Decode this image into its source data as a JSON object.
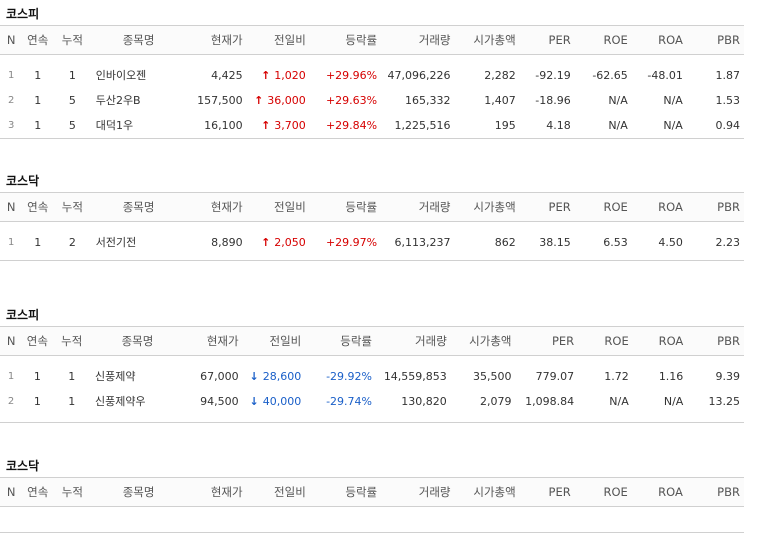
{
  "columns": [
    "N",
    "연속",
    "누적",
    "종목명",
    "현재가",
    "전일비",
    "등락률",
    "거래량",
    "시가총액",
    "PER",
    "ROE",
    "ROA",
    "PBR"
  ],
  "sections": [
    {
      "title": "코스피",
      "rows": [
        {
          "n": "1",
          "streak": "1",
          "cum": "1",
          "name": "인바이오젠",
          "price": "4,425",
          "dir": "up",
          "change": "1,020",
          "rate": "+29.96%",
          "volume": "47,096,226",
          "mcap": "2,282",
          "per": "-92.19",
          "roe": "-62.65",
          "roa": "-48.01",
          "pbr": "1.87"
        },
        {
          "n": "2",
          "streak": "1",
          "cum": "5",
          "name": "두산2우B",
          "price": "157,500",
          "dir": "up",
          "change": "36,000",
          "rate": "+29.63%",
          "volume": "165,332",
          "mcap": "1,407",
          "per": "-18.96",
          "roe": "N/A",
          "roa": "N/A",
          "pbr": "1.53"
        },
        {
          "n": "3",
          "streak": "1",
          "cum": "5",
          "name": "대덕1우",
          "price": "16,100",
          "dir": "up",
          "change": "3,700",
          "rate": "+29.84%",
          "volume": "1,225,516",
          "mcap": "195",
          "per": "4.18",
          "roe": "N/A",
          "roa": "N/A",
          "pbr": "0.94"
        }
      ]
    },
    {
      "title": "코스닥",
      "rows": [
        {
          "n": "1",
          "streak": "1",
          "cum": "2",
          "name": "서전기전",
          "price": "8,890",
          "dir": "up",
          "change": "2,050",
          "rate": "+29.97%",
          "volume": "6,113,237",
          "mcap": "862",
          "per": "38.15",
          "roe": "6.53",
          "roa": "4.50",
          "pbr": "2.23"
        }
      ]
    },
    {
      "title": "코스피",
      "rows": [
        {
          "n": "1",
          "streak": "1",
          "cum": "1",
          "name": "신풍제약",
          "price": "67,000",
          "dir": "down",
          "change": "28,600",
          "rate": "-29.92%",
          "volume": "14,559,853",
          "mcap": "35,500",
          "per": "779.07",
          "roe": "1.72",
          "roa": "1.16",
          "pbr": "9.39"
        },
        {
          "n": "2",
          "streak": "1",
          "cum": "1",
          "name": "신풍제약우",
          "price": "94,500",
          "dir": "down",
          "change": "40,000",
          "rate": "-29.74%",
          "volume": "130,820",
          "mcap": "2,079",
          "per": "1,098.84",
          "roe": "N/A",
          "roa": "N/A",
          "pbr": "13.25"
        }
      ]
    },
    {
      "title": "코스닥",
      "rows": []
    }
  ],
  "icons": {
    "up": "arrow-up-icon",
    "down": "arrow-down-icon"
  },
  "colors": {
    "up": "#d60000",
    "down": "#1a5fc8"
  }
}
